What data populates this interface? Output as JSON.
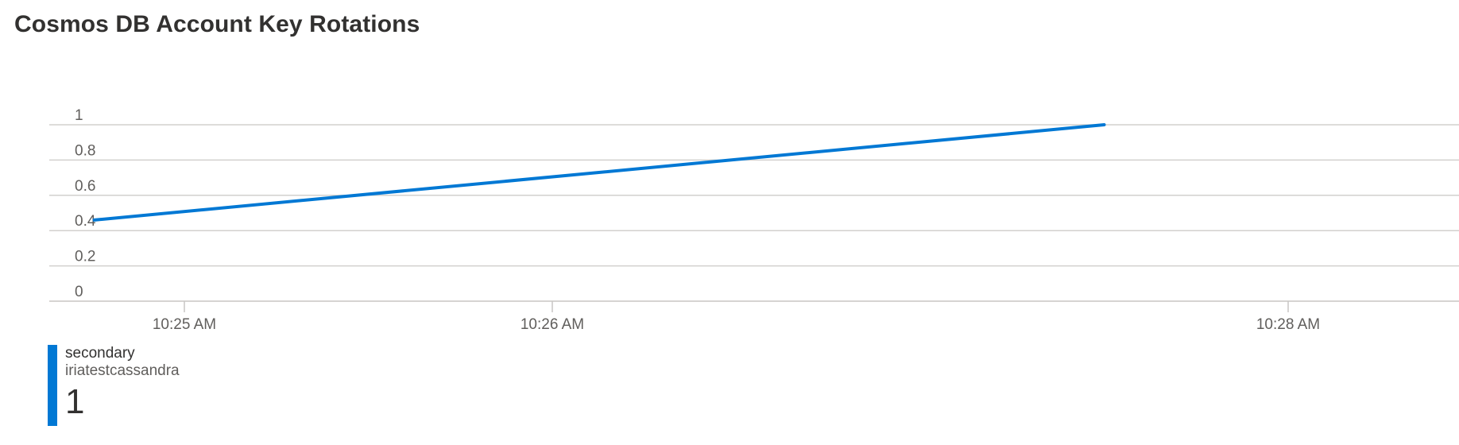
{
  "chart_data": {
    "type": "line",
    "title": "Cosmos DB Account Key Rotations",
    "xlabel": "",
    "ylabel": "",
    "ylim": [
      0,
      1
    ],
    "yticks": [
      "0",
      "0.2",
      "0.4",
      "0.6",
      "0.8",
      "1"
    ],
    "ytick_values": [
      0,
      0.2,
      0.4,
      0.6,
      0.8,
      1
    ],
    "xlim_minutes": [
      -0.37,
      2.47
    ],
    "xticks": [
      {
        "label": "10:25 AM",
        "minutes": 0
      },
      {
        "label": "10:26 AM",
        "minutes": 1
      },
      {
        "label": "10:28 AM",
        "minutes": 3
      }
    ],
    "grid": true,
    "series": [
      {
        "name": "secondary",
        "resource": "iriatestcassandra",
        "color": "#0078d4",
        "points": [
          {
            "minutes": -0.245,
            "value": 0.46
          },
          {
            "minutes": 2.5,
            "value": 1.0
          }
        ]
      }
    ]
  },
  "legend": {
    "series_name": "secondary",
    "resource_name": "iriatestcassandra",
    "value": "1",
    "color": "#0078d4"
  }
}
